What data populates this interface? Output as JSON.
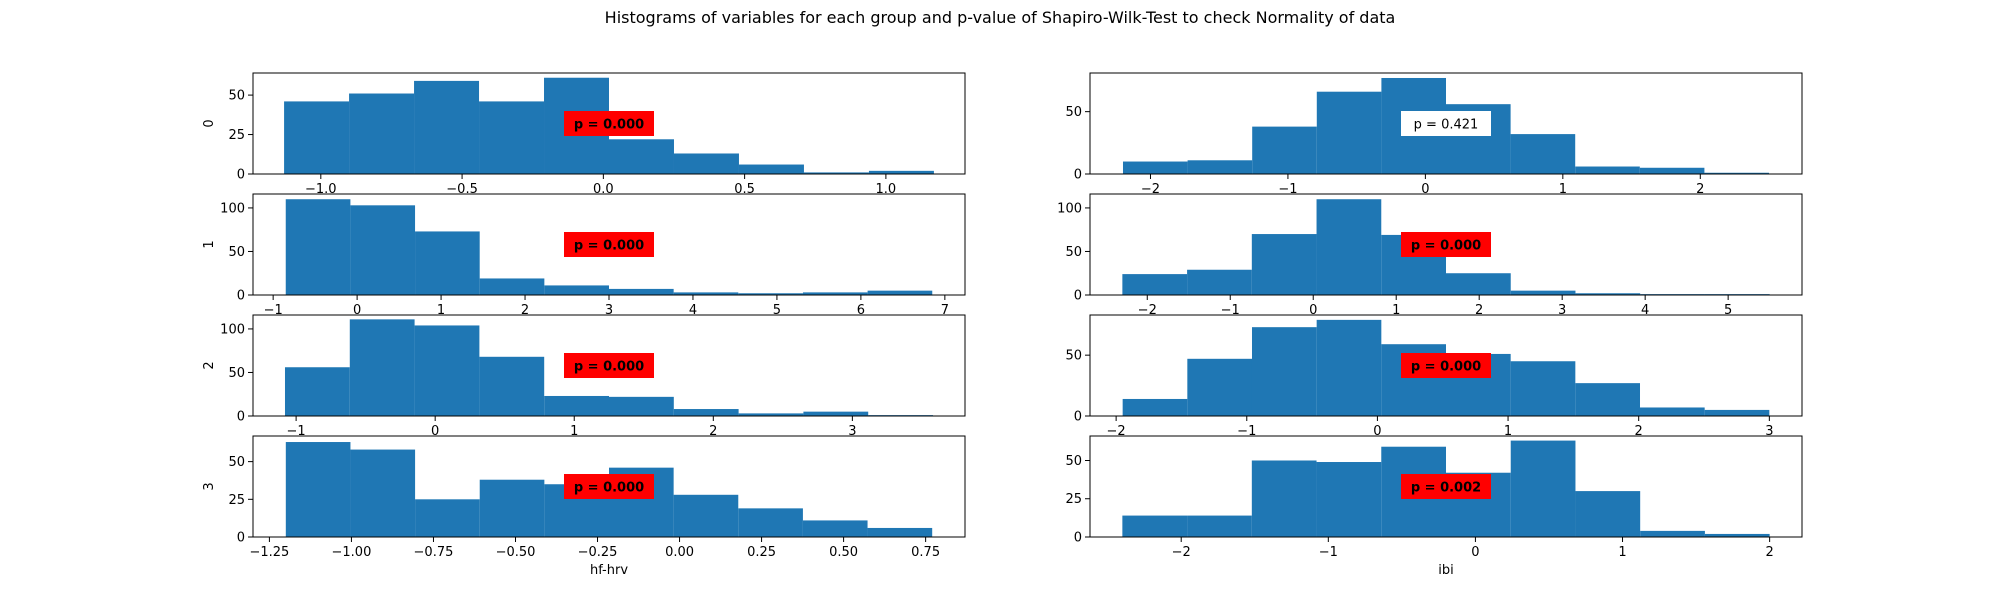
{
  "figure": {
    "title": "Histograms of variables for each group and p-value of Shapiro-Wilk-Test to check Normality of data"
  },
  "colors": {
    "bar": "#1f77b4",
    "significant_box": "#ff0000",
    "normal_box": "#ffffff"
  },
  "chart_data": [
    {
      "type": "bar",
      "variable": "hf-hrv",
      "group": "0",
      "ylabel": "0",
      "xlabel": "",
      "bin_edges": [
        -1.13,
        -0.9,
        -0.67,
        -0.44,
        -0.21,
        0.02,
        0.25,
        0.48,
        0.71,
        0.94,
        1.17
      ],
      "counts": [
        46,
        51,
        59,
        46,
        61,
        22,
        13,
        6,
        1,
        2
      ],
      "xlim": [
        -1.24,
        1.28
      ],
      "ylim": [
        0,
        64
      ],
      "xticks": [
        -1.0,
        -0.5,
        0.0,
        0.5,
        1.0
      ],
      "xtick_labels": [
        "−1.0",
        "−0.5",
        "0.0",
        "0.5",
        "1.0"
      ],
      "yticks": [
        0,
        25,
        50
      ],
      "ytick_labels": [
        "0",
        "25",
        "50"
      ],
      "pvalue": "p = 0.000",
      "significant": true,
      "label_pos": "center"
    },
    {
      "type": "bar",
      "variable": "ibi",
      "group": "0",
      "ylabel": "",
      "xlabel": "",
      "bin_edges": [
        -2.2,
        -1.73,
        -1.26,
        -0.79,
        -0.32,
        0.15,
        0.62,
        1.09,
        1.56,
        2.03,
        2.5
      ],
      "counts": [
        10,
        11,
        38,
        66,
        77,
        56,
        32,
        6,
        5,
        1
      ],
      "xlim": [
        -2.44,
        2.74
      ],
      "ylim": [
        0,
        81
      ],
      "xticks": [
        -2,
        -1,
        0,
        1,
        2
      ],
      "xtick_labels": [
        "−2",
        "−1",
        "0",
        "1",
        "2"
      ],
      "yticks": [
        0,
        50
      ],
      "ytick_labels": [
        "0",
        "50"
      ],
      "pvalue": "p = 0.421",
      "significant": false,
      "label_pos": "center"
    },
    {
      "type": "bar",
      "variable": "hf-hrv",
      "group": "1",
      "ylabel": "1",
      "xlabel": "",
      "bin_edges": [
        -0.85,
        -0.08,
        0.69,
        1.46,
        2.23,
        3.0,
        3.77,
        4.54,
        5.31,
        6.08,
        6.85
      ],
      "counts": [
        110,
        103,
        73,
        19,
        11,
        7,
        3,
        2,
        3,
        5
      ],
      "xlim": [
        -1.24,
        7.24
      ],
      "ylim": [
        0,
        116
      ],
      "xticks": [
        -1,
        0,
        1,
        2,
        3,
        4,
        5,
        6,
        7
      ],
      "xtick_labels": [
        "−1",
        "0",
        "1",
        "2",
        "3",
        "4",
        "5",
        "6",
        "7"
      ],
      "yticks": [
        0,
        50,
        100
      ],
      "ytick_labels": [
        "0",
        "50",
        "100"
      ],
      "pvalue": "p = 0.000",
      "significant": true,
      "label_pos": "center"
    },
    {
      "type": "bar",
      "variable": "ibi",
      "group": "1",
      "ylabel": "",
      "xlabel": "",
      "bin_edges": [
        -2.3,
        -1.52,
        -0.74,
        0.04,
        0.82,
        1.6,
        2.38,
        3.16,
        3.94,
        4.72,
        5.5
      ],
      "counts": [
        24,
        29,
        70,
        110,
        69,
        25,
        5,
        2,
        1,
        1
      ],
      "xlim": [
        -2.69,
        5.89
      ],
      "ylim": [
        0,
        116
      ],
      "xticks": [
        -2,
        -1,
        0,
        1,
        2,
        3,
        4,
        5
      ],
      "xtick_labels": [
        "−2",
        "−1",
        "0",
        "1",
        "2",
        "3",
        "4",
        "5"
      ],
      "yticks": [
        0,
        50,
        100
      ],
      "ytick_labels": [
        "0",
        "50",
        "100"
      ],
      "pvalue": "p = 0.000",
      "significant": true,
      "label_pos": "center"
    },
    {
      "type": "bar",
      "variable": "hf-hrv",
      "group": "2",
      "ylabel": "2",
      "xlabel": "",
      "bin_edges": [
        -1.08,
        -0.614,
        -0.148,
        0.318,
        0.784,
        1.25,
        1.716,
        2.182,
        2.648,
        3.114,
        3.58
      ],
      "counts": [
        56,
        111,
        104,
        68,
        23,
        22,
        8,
        3,
        5,
        1
      ],
      "xlim": [
        -1.31,
        3.81
      ],
      "ylim": [
        0,
        116
      ],
      "xticks": [
        -1,
        0,
        1,
        2,
        3
      ],
      "xtick_labels": [
        "−1",
        "0",
        "1",
        "2",
        "3"
      ],
      "yticks": [
        0,
        50,
        100
      ],
      "ytick_labels": [
        "0",
        "50",
        "100"
      ],
      "pvalue": "p = 0.000",
      "significant": true,
      "label_pos": "center"
    },
    {
      "type": "bar",
      "variable": "ibi",
      "group": "2",
      "ylabel": "",
      "xlabel": "",
      "bin_edges": [
        -1.95,
        -1.455,
        -0.96,
        -0.465,
        0.03,
        0.525,
        1.02,
        1.515,
        2.01,
        2.505,
        3.0
      ],
      "counts": [
        14,
        47,
        73,
        79,
        59,
        51,
        45,
        27,
        7,
        5
      ],
      "xlim": [
        -2.2,
        3.25
      ],
      "ylim": [
        0,
        83
      ],
      "xticks": [
        -2,
        -1,
        0,
        1,
        2,
        3
      ],
      "xtick_labels": [
        "−2",
        "−1",
        "0",
        "1",
        "2",
        "3"
      ],
      "yticks": [
        0,
        50
      ],
      "ytick_labels": [
        "0",
        "50"
      ],
      "pvalue": "p = 0.000",
      "significant": true,
      "label_pos": "center"
    },
    {
      "type": "bar",
      "variable": "hf-hrv",
      "group": "3",
      "ylabel": "3",
      "xlabel": "hf-hrv",
      "bin_edges": [
        -1.2,
        -1.003,
        -0.806,
        -0.609,
        -0.412,
        -0.215,
        -0.018,
        0.179,
        0.376,
        0.573,
        0.77
      ],
      "counts": [
        63,
        58,
        25,
        38,
        35,
        46,
        28,
        19,
        11,
        6
      ],
      "xlim": [
        -1.3,
        0.87
      ],
      "ylim": [
        0,
        67
      ],
      "xticks": [
        -1.25,
        -1.0,
        -0.75,
        -0.5,
        -0.25,
        0.0,
        0.25,
        0.5,
        0.75
      ],
      "xtick_labels": [
        "−1.25",
        "−1.00",
        "−0.75",
        "−0.50",
        "−0.25",
        "0.00",
        "0.25",
        "0.50",
        "0.75"
      ],
      "yticks": [
        0,
        25,
        50
      ],
      "ytick_labels": [
        "0",
        "25",
        "50"
      ],
      "pvalue": "p = 0.000",
      "significant": true,
      "label_pos": "center"
    },
    {
      "type": "bar",
      "variable": "ibi",
      "group": "3",
      "ylabel": "",
      "xlabel": "ibi",
      "bin_edges": [
        -2.4,
        -1.96,
        -1.52,
        -1.08,
        -0.64,
        -0.2,
        0.24,
        0.68,
        1.12,
        1.56,
        2.0
      ],
      "counts": [
        14,
        14,
        50,
        49,
        59,
        42,
        63,
        30,
        4,
        2
      ],
      "xlim": [
        -2.62,
        2.22
      ],
      "ylim": [
        0,
        66
      ],
      "xticks": [
        -2,
        -1,
        0,
        1,
        2
      ],
      "xtick_labels": [
        "−2",
        "−1",
        "0",
        "1",
        "2"
      ],
      "yticks": [
        0,
        25,
        50
      ],
      "ytick_labels": [
        "0",
        "25",
        "50"
      ],
      "pvalue": "p = 0.002",
      "significant": true,
      "label_pos": "center"
    }
  ]
}
